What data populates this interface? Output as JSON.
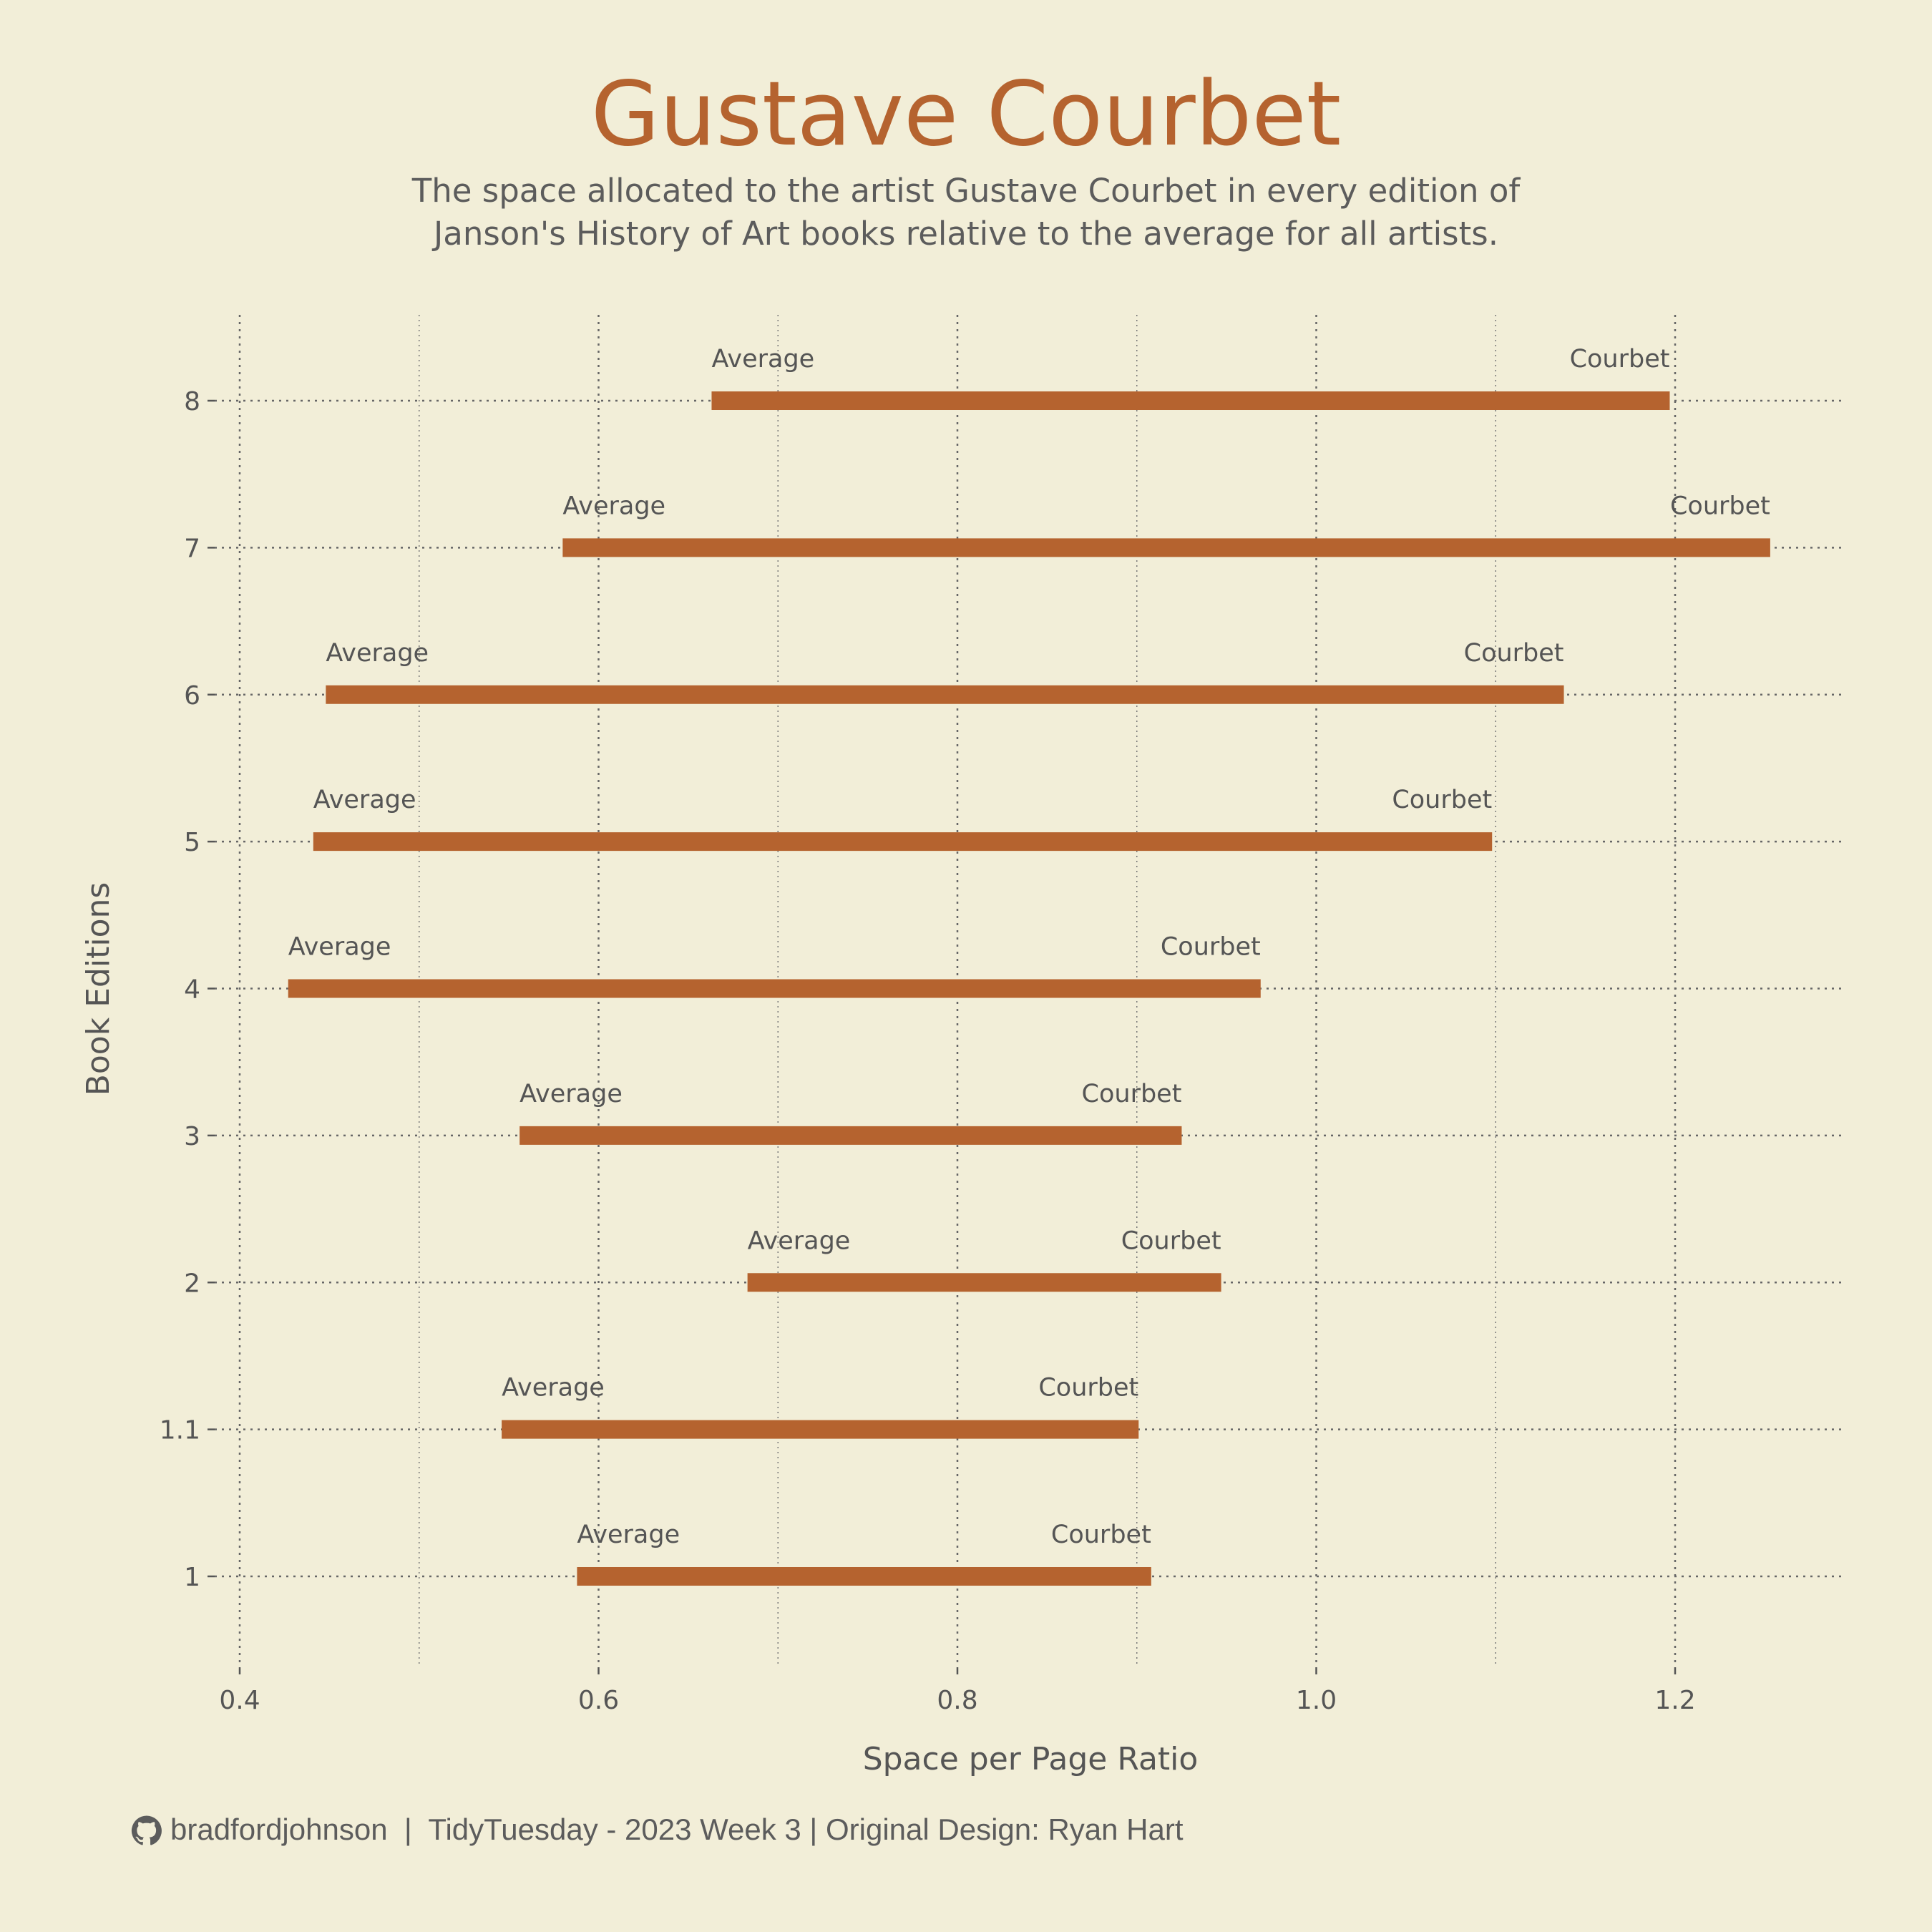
{
  "chart_data": {
    "type": "bar",
    "orientation": "horizontal-range",
    "title": "Gustave Courbet",
    "subtitle": [
      "The space allocated to the artist Gustave Courbet in every edition of",
      "Janson's History of Art books relative to the average for all artists."
    ],
    "xlabel": "Space per Page Ratio",
    "ylabel": "Book Editions",
    "xlim": [
      0.37,
      1.3
    ],
    "x_ticks": [
      {
        "value": 0.4,
        "label": "0.4"
      },
      {
        "value": 0.6,
        "label": "0.6"
      },
      {
        "value": 0.8,
        "label": "0.8"
      },
      {
        "value": 1.0,
        "label": "1.0"
      },
      {
        "value": 1.2,
        "label": "1.2"
      }
    ],
    "x_minor_ticks": [
      0.5,
      0.7,
      0.9,
      1.1
    ],
    "start_label": "Average",
    "end_label": "Courbet",
    "grid": true,
    "color": "#B5632F",
    "categories": [
      "1",
      "1.1",
      "2",
      "3",
      "4",
      "5",
      "6",
      "7",
      "8"
    ],
    "series": [
      {
        "name": "Average",
        "values": [
          0.588,
          0.546,
          0.683,
          0.556,
          0.427,
          0.441,
          0.448,
          0.58,
          0.663
        ]
      },
      {
        "name": "Courbet",
        "values": [
          0.908,
          0.901,
          0.947,
          0.925,
          0.969,
          1.098,
          1.138,
          1.253,
          1.197
        ]
      }
    ]
  },
  "caption": {
    "github_icon": "github-icon",
    "text": "bradfordjohnson  |  TidyTuesday - 2023 Week 3 | Original Design: Ryan Hart"
  }
}
